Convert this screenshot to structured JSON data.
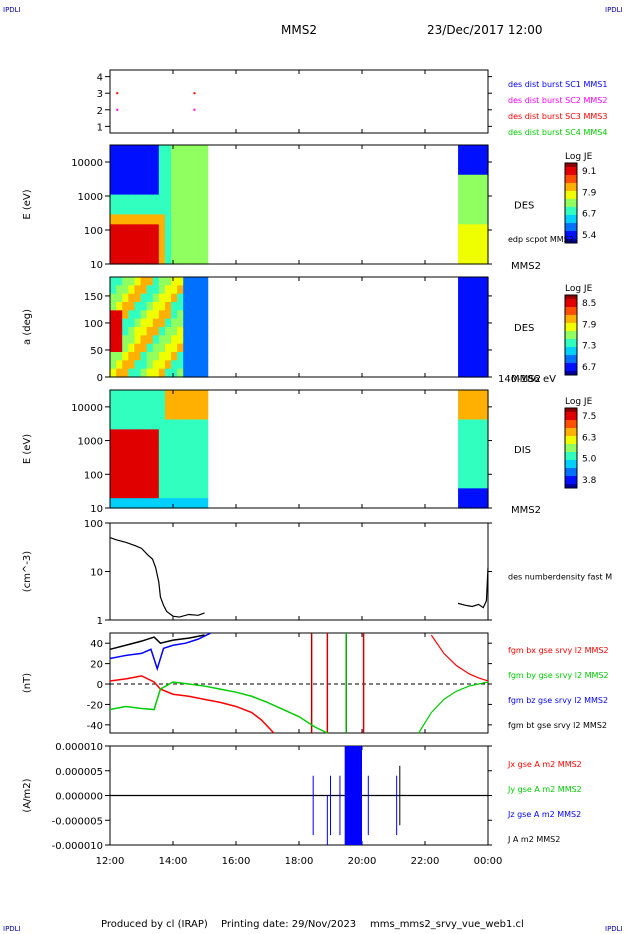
{
  "corner_label": "IPDLI",
  "header": {
    "spacecraft": "MMS2",
    "datetime": "23/Dec/2017 12:00"
  },
  "footer": {
    "produced_by": "Produced by cl (IRAP)",
    "printing_date": "Printing date: 29/Nov/2023",
    "file": "mms_mms2_srvy_vue_web1.cl"
  },
  "colors": {
    "jet_low": "#0000cc",
    "jet_high": "#cc0000"
  },
  "chart_data": [
    {
      "type": "scatter",
      "id": "burst",
      "yticks": [
        "1",
        "2",
        "3",
        "4"
      ],
      "ylim": [
        0.6,
        4.4
      ],
      "series": [
        {
          "name": "des dist burst SC1 MMS1",
          "color": "#0000ff",
          "y": 1,
          "x": []
        },
        {
          "name": "des dist burst SC2 MMS2",
          "color": "#ff00ff",
          "y": 2,
          "x": [
            12.2,
            14.65
          ]
        },
        {
          "name": "des dist burst SC3 MMS3",
          "color": "#ff0000",
          "y": 3,
          "x": [
            12.2,
            14.65
          ]
        },
        {
          "name": "des dist burst SC4 MMS4",
          "color": "#00cc00",
          "y": 4,
          "x": []
        }
      ]
    },
    {
      "type": "heatmap",
      "id": "des_energy",
      "ylabel": "E (eV)",
      "yticks": [
        "10",
        "100",
        "1000",
        "10000"
      ],
      "ylim_log": [
        1,
        4.5
      ],
      "label": "DES",
      "sub_label": "MMS2",
      "overlay_label": "edp scpot MMS2",
      "colorbar": {
        "title": "Log JE",
        "ticks": [
          "9.1",
          "7.9",
          "6.7",
          "5.4"
        ]
      },
      "coverage_hours": [
        [
          12.0,
          15.1
        ],
        [
          23.05,
          24.0
        ]
      ]
    },
    {
      "type": "heatmap",
      "id": "des_pitch",
      "ylabel": "a (deg)",
      "yticks": [
        "0",
        "50",
        "100",
        "150"
      ],
      "ylim": [
        0,
        185
      ],
      "label": "DES",
      "sub_label": "MMS2",
      "bottom_label": "140-186 eV",
      "colorbar": {
        "title": "Log JE",
        "ticks": [
          "8.5",
          "7.9",
          "7.3",
          "6.7"
        ]
      },
      "coverage_hours": [
        [
          12.0,
          15.1
        ],
        [
          23.05,
          24.0
        ]
      ]
    },
    {
      "type": "heatmap",
      "id": "dis_energy",
      "ylabel": "E (eV)",
      "yticks": [
        "10",
        "100",
        "1000",
        "10000"
      ],
      "ylim_log": [
        1,
        4.5
      ],
      "label": "DIS",
      "sub_label": "MMS2",
      "colorbar": {
        "title": "Log JE",
        "ticks": [
          "7.5",
          "6.3",
          "5.0",
          "3.8"
        ]
      },
      "coverage_hours": [
        [
          12.0,
          15.1
        ],
        [
          23.05,
          24.0
        ]
      ]
    },
    {
      "type": "line",
      "id": "density",
      "ylabel": "(cm^-3)",
      "yticks": [
        "1",
        "10",
        "100"
      ],
      "ylim_log": [
        0,
        2
      ],
      "series": [
        {
          "name": "des numberdensity fast M",
          "color": "#000000",
          "segments": [
            {
              "x": [
                12.0,
                12.2,
                12.5,
                12.8,
                13.0,
                13.2,
                13.35,
                13.45,
                13.55,
                13.6,
                13.7,
                13.8,
                14.0,
                14.2,
                14.5,
                14.8,
                15.0
              ],
              "y": [
                50,
                45,
                40,
                34,
                30,
                22,
                18,
                12,
                6,
                3,
                2,
                1.5,
                1.2,
                1.15,
                1.3,
                1.25,
                1.4
              ]
            },
            {
              "x": [
                23.05,
                23.3,
                23.5,
                23.7,
                23.85,
                23.95,
                24.0
              ],
              "y": [
                2.2,
                2.0,
                1.9,
                2.1,
                1.8,
                2.5,
                12
              ]
            }
          ]
        }
      ]
    },
    {
      "type": "line",
      "id": "bfield",
      "ylabel": "(nT)",
      "yticks": [
        "-40",
        "-20",
        "0",
        "20",
        "40"
      ],
      "ylim": [
        -48,
        50
      ],
      "spikes_x": [
        18.4,
        18.9,
        19.5,
        20.05
      ],
      "series": [
        {
          "name": "fgm bx gse srvy l2 MMS2",
          "color": "#ff0000",
          "x": [
            12.0,
            12.5,
            13.0,
            13.4,
            13.6,
            14.0,
            14.5,
            15.0,
            15.5,
            16.0,
            16.5,
            16.8,
            17.2
          ],
          "y": [
            3,
            5,
            8,
            2,
            -5,
            -10,
            -12,
            -15,
            -18,
            -22,
            -28,
            -35,
            -48
          ],
          "x2": [
            22.2,
            22.6,
            23.0,
            23.4,
            23.7,
            24.0
          ],
          "y2": [
            48,
            30,
            18,
            10,
            6,
            3
          ]
        },
        {
          "name": "fgm by gse srvy l2 MMS2",
          "color": "#00cc00",
          "x": [
            12.0,
            12.5,
            13.0,
            13.4,
            13.6,
            14.0,
            14.5,
            15.0,
            15.5,
            16.0,
            16.5,
            17.0,
            17.5,
            18.0,
            18.5,
            18.9
          ],
          "y": [
            -25,
            -22,
            -24,
            -25,
            -5,
            2,
            0,
            -2,
            -5,
            -8,
            -12,
            -18,
            -25,
            -32,
            -42,
            -48
          ],
          "x2": [
            21.8,
            22.2,
            22.6,
            23.0,
            23.4,
            23.7,
            24.0
          ],
          "y2": [
            -48,
            -28,
            -15,
            -7,
            -2,
            0,
            2
          ]
        },
        {
          "name": "fgm bz gse srvy l2 MMS2",
          "color": "#0000ff",
          "x": [
            12.0,
            12.5,
            13.0,
            13.3,
            13.5,
            13.7,
            14.0,
            14.4,
            14.8,
            15.2
          ],
          "y": [
            25,
            28,
            30,
            34,
            15,
            35,
            38,
            40,
            44,
            50
          ],
          "x2": [],
          "y2": []
        },
        {
          "name": "fgm bt gse srvy l2 MMS2",
          "color": "#000000",
          "x": [
            12.0,
            12.5,
            13.0,
            13.4,
            13.6,
            14.0,
            14.5,
            15.0
          ],
          "y": [
            34,
            38,
            42,
            46,
            40,
            43,
            45,
            48
          ],
          "x2": [],
          "y2": []
        }
      ]
    },
    {
      "type": "line",
      "id": "current",
      "ylabel": "(A/m2)",
      "yticks": [
        "-0.000010",
        "-0.000005",
        "0.000000",
        "0.000005",
        "0.000010"
      ],
      "ylim": [
        -1e-05,
        1e-05
      ],
      "burst_x": [
        19.45,
        20.0
      ],
      "series": [
        {
          "name": "Jx gse A m2 MMS2",
          "color": "#ff0000"
        },
        {
          "name": "Jy gse A m2 MMS2",
          "color": "#00cc00"
        },
        {
          "name": "Jz gse A m2 MMS2",
          "color": "#0000ff"
        },
        {
          "name": "J A m2 MMS2",
          "color": "#000000"
        }
      ]
    }
  ],
  "x_axis": {
    "ticks": [
      "12:00",
      "14:00",
      "16:00",
      "18:00",
      "20:00",
      "22:00",
      "00:00"
    ],
    "hours": [
      12,
      14,
      16,
      18,
      20,
      22,
      24
    ]
  }
}
